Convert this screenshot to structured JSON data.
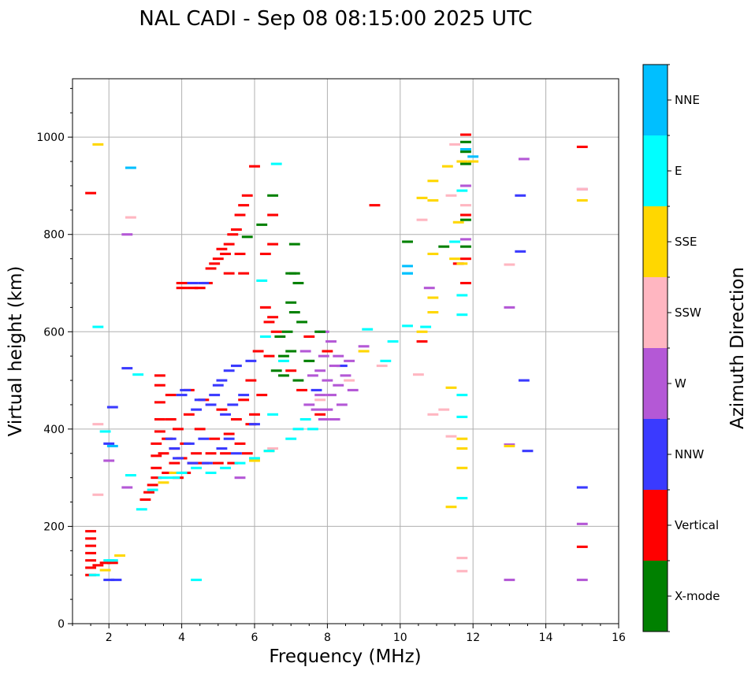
{
  "chart_data": {
    "type": "scatter",
    "title": "NAL CADI - Sep 08 08:15:00 2025 UTC",
    "xlabel": "Frequency (MHz)",
    "ylabel": "Virtual height (km)",
    "xlim": [
      1,
      16
    ],
    "ylim": [
      0,
      1120
    ],
    "xticks": [
      2,
      4,
      6,
      8,
      10,
      12,
      14,
      16
    ],
    "yticks": [
      0,
      200,
      400,
      600,
      800,
      1000
    ],
    "grid": true,
    "colorbar": {
      "label": "Azimuth Direction",
      "position": "right",
      "categories": [
        "X-mode",
        "Vertical",
        "NNW",
        "W",
        "SSW",
        "SSE",
        "E",
        "NNE"
      ],
      "colors": [
        "#008000",
        "#ff0000",
        "#3a3aff",
        "#b458d6",
        "#ffb6c1",
        "#ffd700",
        "#00ffff",
        "#00bfff"
      ]
    },
    "echo_size_units": {
      "df_mhz": 0.1,
      "dh_km": 5
    },
    "series": [
      {
        "name": "Vertical",
        "points": [
          [
            1.5,
            885
          ],
          [
            1.5,
            190
          ],
          [
            1.5,
            175
          ],
          [
            1.5,
            160
          ],
          [
            1.5,
            145
          ],
          [
            1.5,
            130
          ],
          [
            1.5,
            115
          ],
          [
            1.5,
            100
          ],
          [
            1.7,
            120
          ],
          [
            1.9,
            125
          ],
          [
            2.1,
            125
          ],
          [
            3.0,
            255
          ],
          [
            3.1,
            270
          ],
          [
            3.2,
            285
          ],
          [
            3.3,
            300
          ],
          [
            3.3,
            320
          ],
          [
            3.3,
            345
          ],
          [
            3.3,
            370
          ],
          [
            3.4,
            395
          ],
          [
            3.4,
            420
          ],
          [
            3.4,
            455
          ],
          [
            3.4,
            490
          ],
          [
            3.4,
            510
          ],
          [
            3.5,
            350
          ],
          [
            3.6,
            310
          ],
          [
            3.6,
            380
          ],
          [
            3.7,
            420
          ],
          [
            3.7,
            470
          ],
          [
            3.8,
            330
          ],
          [
            3.8,
            360
          ],
          [
            3.9,
            300
          ],
          [
            3.9,
            400
          ],
          [
            4.0,
            690
          ],
          [
            4.0,
            700
          ],
          [
            4.0,
            340
          ],
          [
            4.1,
            370
          ],
          [
            4.1,
            310
          ],
          [
            4.2,
            430
          ],
          [
            4.2,
            480
          ],
          [
            4.3,
            690
          ],
          [
            4.3,
            330
          ],
          [
            4.4,
            350
          ],
          [
            4.5,
            690
          ],
          [
            4.5,
            400
          ],
          [
            4.6,
            330
          ],
          [
            4.6,
            460
          ],
          [
            4.7,
            700
          ],
          [
            4.8,
            730
          ],
          [
            4.8,
            350
          ],
          [
            4.9,
            740
          ],
          [
            4.9,
            380
          ],
          [
            5.0,
            750
          ],
          [
            5.0,
            330
          ],
          [
            5.1,
            770
          ],
          [
            5.1,
            440
          ],
          [
            5.2,
            760
          ],
          [
            5.2,
            350
          ],
          [
            5.3,
            780
          ],
          [
            5.3,
            720
          ],
          [
            5.3,
            390
          ],
          [
            5.4,
            800
          ],
          [
            5.4,
            330
          ],
          [
            5.5,
            810
          ],
          [
            5.5,
            420
          ],
          [
            5.6,
            840
          ],
          [
            5.6,
            760
          ],
          [
            5.6,
            370
          ],
          [
            5.7,
            860
          ],
          [
            5.7,
            720
          ],
          [
            5.7,
            460
          ],
          [
            5.8,
            880
          ],
          [
            5.8,
            350
          ],
          [
            5.9,
            410
          ],
          [
            5.9,
            500
          ],
          [
            6.0,
            940
          ],
          [
            6.0,
            430
          ],
          [
            6.1,
            560
          ],
          [
            6.2,
            470
          ],
          [
            6.3,
            760
          ],
          [
            6.3,
            650
          ],
          [
            6.4,
            620
          ],
          [
            6.4,
            550
          ],
          [
            6.5,
            840
          ],
          [
            6.5,
            780
          ],
          [
            6.5,
            630
          ],
          [
            6.6,
            600
          ],
          [
            7.0,
            520
          ],
          [
            7.3,
            480
          ],
          [
            7.5,
            590
          ],
          [
            7.8,
            430
          ],
          [
            8.0,
            560
          ],
          [
            9.3,
            860
          ],
          [
            10.6,
            580
          ],
          [
            11.6,
            740
          ],
          [
            11.8,
            1005
          ],
          [
            11.8,
            840
          ],
          [
            11.8,
            750
          ],
          [
            11.8,
            700
          ],
          [
            15.0,
            980
          ],
          [
            15.0,
            158
          ]
        ]
      },
      {
        "name": "NNW",
        "points": [
          [
            2.0,
            90
          ],
          [
            2.0,
            370
          ],
          [
            2.1,
            445
          ],
          [
            2.2,
            90
          ],
          [
            2.5,
            525
          ],
          [
            3.7,
            380
          ],
          [
            3.8,
            360
          ],
          [
            3.9,
            340
          ],
          [
            4.0,
            470
          ],
          [
            4.1,
            480
          ],
          [
            4.2,
            370
          ],
          [
            4.3,
            700
          ],
          [
            4.3,
            330
          ],
          [
            4.4,
            440
          ],
          [
            4.5,
            460
          ],
          [
            4.6,
            700
          ],
          [
            4.6,
            380
          ],
          [
            4.7,
            330
          ],
          [
            4.8,
            450
          ],
          [
            4.9,
            470
          ],
          [
            5.0,
            490
          ],
          [
            5.1,
            500
          ],
          [
            5.1,
            360
          ],
          [
            5.2,
            430
          ],
          [
            5.3,
            520
          ],
          [
            5.3,
            380
          ],
          [
            5.4,
            450
          ],
          [
            5.5,
            530
          ],
          [
            5.5,
            350
          ],
          [
            5.7,
            470
          ],
          [
            5.9,
            540
          ],
          [
            6.0,
            410
          ],
          [
            7.7,
            480
          ],
          [
            8.4,
            530
          ],
          [
            13.3,
            880
          ],
          [
            13.3,
            765
          ],
          [
            13.4,
            500
          ],
          [
            13.5,
            355
          ],
          [
            15.0,
            280
          ]
        ]
      },
      {
        "name": "W",
        "points": [
          [
            2.0,
            335
          ],
          [
            2.5,
            800
          ],
          [
            2.5,
            280
          ],
          [
            5.6,
            300
          ],
          [
            7.4,
            560
          ],
          [
            7.5,
            450
          ],
          [
            7.6,
            510
          ],
          [
            7.7,
            440
          ],
          [
            7.8,
            470
          ],
          [
            7.8,
            520
          ],
          [
            7.9,
            600
          ],
          [
            7.9,
            550
          ],
          [
            7.9,
            420
          ],
          [
            8.0,
            500
          ],
          [
            8.0,
            440
          ],
          [
            8.1,
            580
          ],
          [
            8.1,
            470
          ],
          [
            8.2,
            530
          ],
          [
            8.2,
            420
          ],
          [
            8.3,
            550
          ],
          [
            8.3,
            490
          ],
          [
            8.4,
            450
          ],
          [
            8.5,
            510
          ],
          [
            8.6,
            540
          ],
          [
            8.7,
            480
          ],
          [
            9.0,
            570
          ],
          [
            10.8,
            690
          ],
          [
            11.8,
            900
          ],
          [
            11.8,
            790
          ],
          [
            13.0,
            650
          ],
          [
            13.0,
            90
          ],
          [
            13.0,
            368
          ],
          [
            13.4,
            955
          ],
          [
            15.0,
            205
          ],
          [
            15.0,
            90
          ],
          [
            15.0,
            893
          ]
        ]
      },
      {
        "name": "SSW",
        "points": [
          [
            1.7,
            410
          ],
          [
            1.7,
            265
          ],
          [
            2.6,
            835
          ],
          [
            6.5,
            360
          ],
          [
            7.8,
            460
          ],
          [
            8.6,
            500
          ],
          [
            9.0,
            560
          ],
          [
            9.5,
            530
          ],
          [
            10.6,
            830
          ],
          [
            10.5,
            512
          ],
          [
            10.9,
            430
          ],
          [
            11.2,
            440
          ],
          [
            11.4,
            385
          ],
          [
            11.4,
            880
          ],
          [
            11.5,
            985
          ],
          [
            11.7,
            135
          ],
          [
            11.7,
            108
          ],
          [
            11.8,
            860
          ],
          [
            13.0,
            738
          ],
          [
            15.0,
            893
          ]
        ]
      },
      {
        "name": "SSE",
        "points": [
          [
            1.7,
            985
          ],
          [
            1.9,
            110
          ],
          [
            2.3,
            140
          ],
          [
            3.5,
            290
          ],
          [
            3.8,
            310
          ],
          [
            6.0,
            335
          ],
          [
            6.4,
            355
          ],
          [
            9.0,
            560
          ],
          [
            10.6,
            600
          ],
          [
            10.6,
            875
          ],
          [
            10.9,
            910
          ],
          [
            10.9,
            870
          ],
          [
            10.9,
            760
          ],
          [
            10.9,
            670
          ],
          [
            10.9,
            640
          ],
          [
            11.3,
            940
          ],
          [
            11.4,
            240
          ],
          [
            11.4,
            485
          ],
          [
            11.5,
            750
          ],
          [
            11.6,
            825
          ],
          [
            11.7,
            380
          ],
          [
            11.7,
            360
          ],
          [
            11.7,
            320
          ],
          [
            11.7,
            740
          ],
          [
            11.7,
            950
          ],
          [
            12.0,
            950
          ],
          [
            13.0,
            365
          ],
          [
            15.0,
            870
          ]
        ]
      },
      {
        "name": "E",
        "points": [
          [
            1.6,
            100
          ],
          [
            1.7,
            610
          ],
          [
            1.9,
            395
          ],
          [
            2.0,
            130
          ],
          [
            2.1,
            130
          ],
          [
            2.6,
            305
          ],
          [
            2.8,
            512
          ],
          [
            2.9,
            235
          ],
          [
            3.2,
            275
          ],
          [
            3.5,
            300
          ],
          [
            3.8,
            300
          ],
          [
            4.0,
            310
          ],
          [
            4.4,
            90
          ],
          [
            4.4,
            320
          ],
          [
            4.8,
            310
          ],
          [
            5.2,
            320
          ],
          [
            5.6,
            330
          ],
          [
            6.0,
            340
          ],
          [
            6.2,
            705
          ],
          [
            6.3,
            590
          ],
          [
            6.4,
            355
          ],
          [
            6.5,
            430
          ],
          [
            6.6,
            945
          ],
          [
            6.8,
            540
          ],
          [
            7.0,
            380
          ],
          [
            7.2,
            400
          ],
          [
            7.4,
            420
          ],
          [
            7.6,
            400
          ],
          [
            9.1,
            605
          ],
          [
            9.6,
            540
          ],
          [
            9.8,
            580
          ],
          [
            10.2,
            720
          ],
          [
            10.2,
            612
          ],
          [
            10.7,
            610
          ],
          [
            11.5,
            785
          ],
          [
            11.7,
            890
          ],
          [
            11.7,
            675
          ],
          [
            11.7,
            635
          ],
          [
            11.7,
            470
          ],
          [
            11.7,
            425
          ],
          [
            11.7,
            258
          ]
        ]
      },
      {
        "name": "X-mode",
        "points": [
          [
            5.8,
            795
          ],
          [
            6.2,
            820
          ],
          [
            6.5,
            880
          ],
          [
            6.6,
            520
          ],
          [
            6.7,
            590
          ],
          [
            6.8,
            510
          ],
          [
            6.8,
            550
          ],
          [
            6.9,
            600
          ],
          [
            7.0,
            660
          ],
          [
            7.0,
            720
          ],
          [
            7.0,
            560
          ],
          [
            7.1,
            640
          ],
          [
            7.1,
            780
          ],
          [
            7.1,
            720
          ],
          [
            7.2,
            700
          ],
          [
            7.2,
            500
          ],
          [
            7.3,
            620
          ],
          [
            7.5,
            540
          ],
          [
            7.8,
            600
          ],
          [
            10.2,
            785
          ],
          [
            11.2,
            775
          ],
          [
            11.8,
            990
          ],
          [
            11.8,
            970
          ],
          [
            11.8,
            945
          ],
          [
            11.8,
            775
          ],
          [
            11.8,
            830
          ]
        ]
      },
      {
        "name": "NNE",
        "points": [
          [
            2.1,
            365
          ],
          [
            2.6,
            937
          ],
          [
            10.2,
            735
          ],
          [
            10.2,
            720
          ],
          [
            11.8,
            975
          ],
          [
            12.0,
            960
          ]
        ]
      }
    ]
  }
}
